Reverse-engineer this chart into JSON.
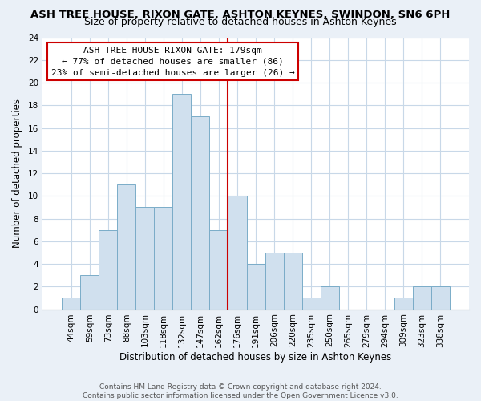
{
  "title": "ASH TREE HOUSE, RIXON GATE, ASHTON KEYNES, SWINDON, SN6 6PH",
  "subtitle": "Size of property relative to detached houses in Ashton Keynes",
  "xlabel": "Distribution of detached houses by size in Ashton Keynes",
  "ylabel": "Number of detached properties",
  "bin_labels": [
    "44sqm",
    "59sqm",
    "73sqm",
    "88sqm",
    "103sqm",
    "118sqm",
    "132sqm",
    "147sqm",
    "162sqm",
    "176sqm",
    "191sqm",
    "206sqm",
    "220sqm",
    "235sqm",
    "250sqm",
    "265sqm",
    "279sqm",
    "294sqm",
    "309sqm",
    "323sqm",
    "338sqm"
  ],
  "bar_heights": [
    1,
    3,
    7,
    11,
    9,
    9,
    19,
    17,
    7,
    10,
    4,
    5,
    5,
    1,
    2,
    0,
    0,
    0,
    1,
    2,
    2
  ],
  "bar_color": "#d0e0ee",
  "bar_edge_color": "#7aacc8",
  "vline_color": "#cc0000",
  "vline_index": 9,
  "annotation_title": "ASH TREE HOUSE RIXON GATE: 179sqm",
  "annotation_line1": "← 77% of detached houses are smaller (86)",
  "annotation_line2": "23% of semi-detached houses are larger (26) →",
  "annotation_box_color": "#ffffff",
  "annotation_box_edge": "#cc0000",
  "ylim": [
    0,
    24
  ],
  "yticks": [
    0,
    2,
    4,
    6,
    8,
    10,
    12,
    14,
    16,
    18,
    20,
    22,
    24
  ],
  "footer1": "Contains HM Land Registry data © Crown copyright and database right 2024.",
  "footer2": "Contains public sector information licensed under the Open Government Licence v3.0.",
  "plot_bg_color": "#ffffff",
  "fig_bg_color": "#eaf0f7",
  "grid_color": "#c8d8e8",
  "title_fontsize": 9.5,
  "subtitle_fontsize": 9,
  "label_fontsize": 8.5,
  "tick_fontsize": 7.5,
  "footer_fontsize": 6.5,
  "ann_fontsize": 8
}
